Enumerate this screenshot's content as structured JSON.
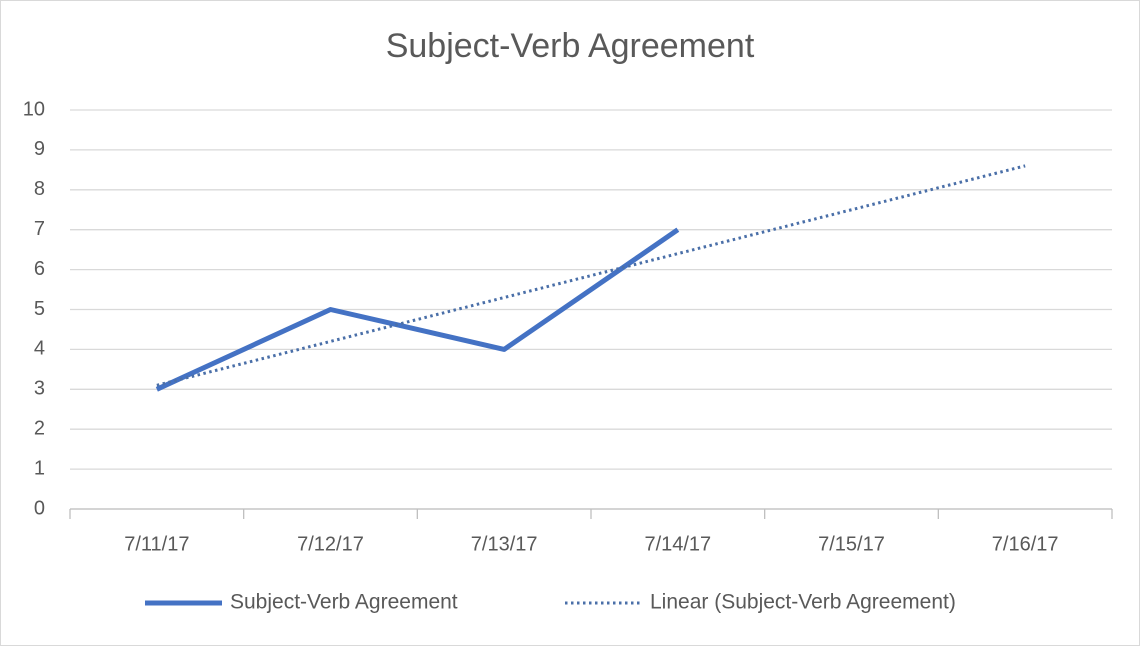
{
  "chart_data": {
    "type": "line",
    "title": "Subject-Verb Agreement",
    "categories": [
      "7/11/17",
      "7/12/17",
      "7/13/17",
      "7/14/17",
      "7/15/17",
      "7/16/17"
    ],
    "series": [
      {
        "name": "Subject-Verb Agreement",
        "color": "#4472c4",
        "dash": "solid",
        "values": [
          3,
          5,
          4,
          7,
          null,
          null
        ]
      },
      {
        "name": "Linear (Subject-Verb Agreement)",
        "color": "#4a6fa8",
        "dash": "dotted",
        "values": [
          3.1,
          4.2,
          5.3,
          6.4,
          7.5,
          8.6
        ]
      }
    ],
    "ylim": [
      0,
      10
    ],
    "yticks": [
      0,
      1,
      2,
      3,
      4,
      5,
      6,
      7,
      8,
      9,
      10
    ],
    "grid": true,
    "legend": "bottom"
  }
}
